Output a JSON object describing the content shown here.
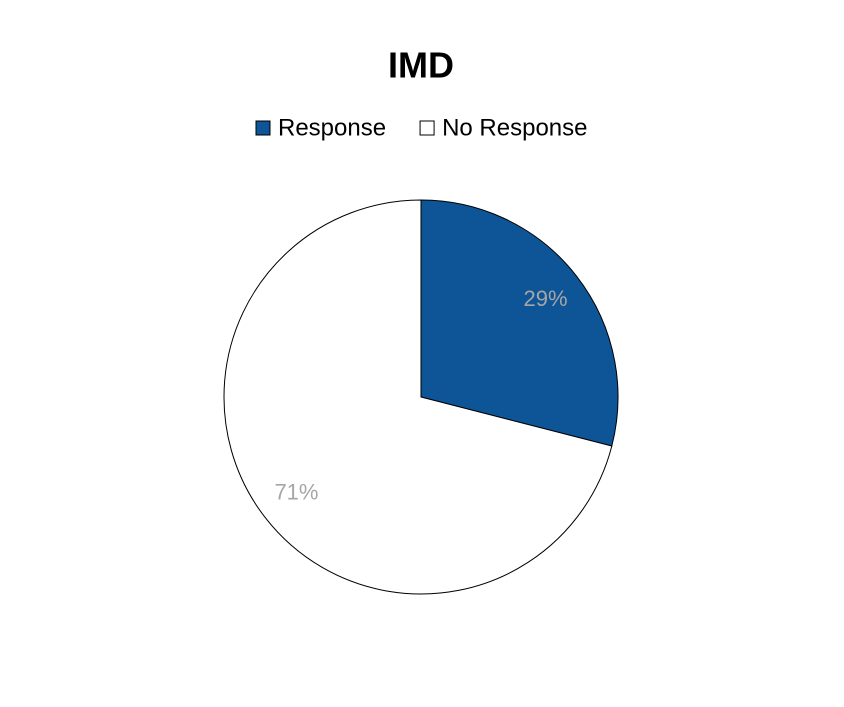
{
  "chart_data": {
    "type": "pie",
    "title": "IMD",
    "categories": [
      "Response",
      "No Response"
    ],
    "values": [
      29,
      71
    ],
    "value_labels": [
      "29%",
      "71%"
    ],
    "colors": [
      "#0d5596",
      "#ffffff"
    ],
    "legend": "top"
  }
}
